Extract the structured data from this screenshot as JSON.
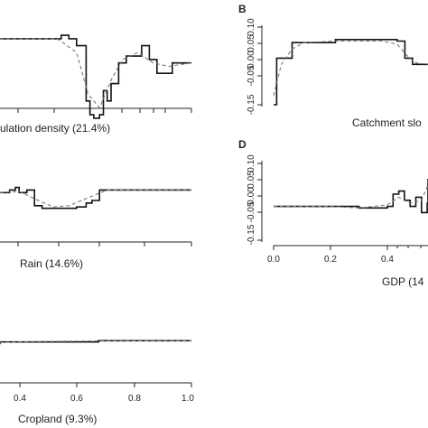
{
  "chart_data": [
    {
      "type": "line",
      "panel_letter": "",
      "xlabel": "ulation density (21.4%)",
      "ylabel": "",
      "x_tick_labels": [],
      "y_tick_labels": [],
      "series": [
        {
          "style": "solid",
          "x": [
            0,
            0.28,
            0.32,
            0.36,
            0.4,
            0.45,
            0.47,
            0.49,
            0.52,
            0.54,
            0.56,
            0.58,
            0.62,
            0.66,
            0.7,
            0.74,
            0.78,
            0.82,
            0.86,
            0.9,
            1.0
          ],
          "y": [
            0.08,
            0.08,
            0.09,
            0.08,
            0.06,
            -0.1,
            -0.14,
            -0.15,
            -0.14,
            -0.07,
            -0.1,
            -0.05,
            0.01,
            0.03,
            0.03,
            0.06,
            0.02,
            -0.02,
            -0.02,
            0.01,
            0.01
          ]
        },
        {
          "style": "dashed",
          "x": [
            0,
            0.3,
            0.4,
            0.46,
            0.52,
            0.58,
            0.64,
            0.72,
            0.8,
            0.88,
            1.0
          ],
          "y": [
            0.08,
            0.08,
            0.04,
            -0.08,
            -0.12,
            -0.04,
            0.02,
            0.04,
            0.01,
            0.0,
            0.01
          ]
        }
      ]
    },
    {
      "type": "line",
      "panel_letter": "B",
      "xlabel": "Catchment slo",
      "ylabel": "",
      "ylim": [
        -0.15,
        0.1
      ],
      "x_tick_labels": [],
      "y_tick_labels": [
        "0.10",
        "0.05",
        "0.00",
        "-0.05",
        "-0.15"
      ],
      "series": [
        {
          "style": "solid",
          "x": [
            0,
            0.02,
            0.05,
            0.1,
            0.12,
            0.16,
            0.25,
            0.38,
            0.4,
            0.55,
            0.6,
            0.7,
            0.75,
            0.8,
            0.85,
            0.9,
            0.95,
            1.0
          ],
          "y": [
            -0.15,
            0.0,
            0.0,
            0.0,
            0.05,
            0.05,
            0.05,
            0.05,
            0.06,
            0.06,
            0.06,
            0.06,
            0.06,
            0.055,
            0.0,
            -0.02,
            -0.02,
            -0.02
          ]
        },
        {
          "style": "dashed",
          "x": [
            0,
            0.05,
            0.12,
            0.2,
            0.4,
            0.7,
            0.8,
            0.86,
            0.92,
            1.0
          ],
          "y": [
            -0.12,
            -0.02,
            0.03,
            0.05,
            0.055,
            0.055,
            0.045,
            0.01,
            -0.015,
            -0.02
          ]
        }
      ]
    },
    {
      "type": "line",
      "panel_letter": "",
      "xlabel": "Rain (14.6%)",
      "ylabel": "",
      "x_tick_labels": [],
      "y_tick_labels": [],
      "series": [
        {
          "style": "solid",
          "x": [
            0,
            0.05,
            0.08,
            0.1,
            0.14,
            0.18,
            0.22,
            0.3,
            0.4,
            0.45,
            0.48,
            0.52,
            0.55,
            1.0
          ],
          "y": [
            0.0,
            0.01,
            0.02,
            0.0,
            0.01,
            -0.05,
            -0.06,
            -0.06,
            -0.055,
            -0.04,
            -0.03,
            0.01,
            0.01,
            0.01
          ]
        },
        {
          "style": "dashed",
          "x": [
            0,
            0.1,
            0.2,
            0.28,
            0.36,
            0.46,
            0.56,
            1.0
          ],
          "y": [
            0.0,
            0.005,
            -0.03,
            -0.055,
            -0.05,
            -0.02,
            0.01,
            0.01
          ]
        }
      ]
    },
    {
      "type": "line",
      "panel_letter": "D",
      "xlabel": "GDP (14",
      "ylabel": "",
      "xlim": [
        0,
        0.6
      ],
      "ylim": [
        -0.15,
        0.1
      ],
      "x_tick_labels": [
        "0.0",
        "0.2",
        "0.4"
      ],
      "y_tick_labels": [
        "0.10",
        "0.05",
        "0.00",
        "-0.05",
        "-0.15"
      ],
      "series": [
        {
          "style": "solid",
          "x": [
            0.0,
            0.1,
            0.2,
            0.3,
            0.4,
            0.42,
            0.44,
            0.46,
            0.48,
            0.5,
            0.52,
            0.54,
            0.56,
            0.58,
            0.6
          ],
          "y": [
            -0.04,
            -0.04,
            -0.04,
            -0.045,
            -0.04,
            0.0,
            0.01,
            -0.02,
            -0.04,
            -0.01,
            -0.06,
            -0.03,
            0.05,
            0.04,
            0.04
          ]
        },
        {
          "style": "dashed",
          "x": [
            0.0,
            0.2,
            0.3,
            0.4,
            0.44,
            0.48,
            0.52,
            0.56,
            0.6
          ],
          "y": [
            -0.04,
            -0.04,
            -0.045,
            -0.035,
            -0.01,
            -0.03,
            -0.02,
            0.03,
            0.04
          ]
        }
      ]
    },
    {
      "type": "line",
      "panel_letter": "",
      "xlabel": "Cropland (9.3%)",
      "ylabel": "",
      "xlim": [
        0,
        1.0
      ],
      "x_tick_labels": [
        "0.4",
        "0.6",
        "0.8",
        "1.0"
      ],
      "y_tick_labels": [],
      "series": [
        {
          "style": "solid",
          "x": [
            0,
            0.02,
            0.06,
            0.1,
            0.2,
            0.4,
            0.6,
            0.8,
            1.0
          ],
          "y": [
            -0.005,
            -0.005,
            0.0,
            0.005,
            0.005,
            0.005,
            0.01,
            0.01,
            0.01
          ]
        },
        {
          "style": "dashed",
          "x": [
            0,
            0.1,
            0.3,
            0.6,
            1.0
          ],
          "y": [
            0.0,
            0.003,
            0.006,
            0.009,
            0.01
          ]
        }
      ]
    }
  ]
}
